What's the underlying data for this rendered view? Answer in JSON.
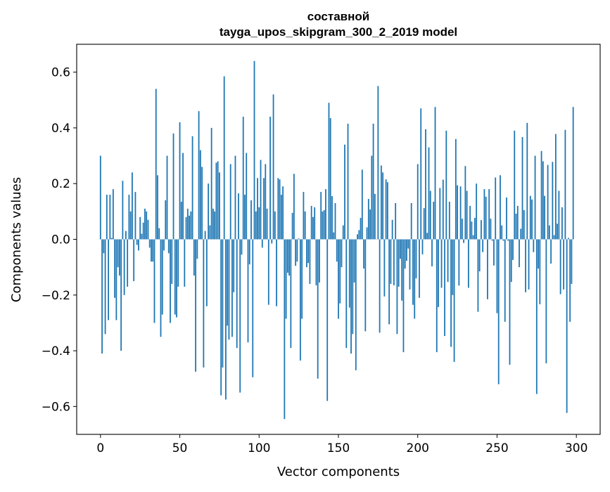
{
  "chart_data": {
    "type": "bar",
    "title": [
      "составной",
      "tayga_upos_skipgram_300_2_2019 model"
    ],
    "xlabel": "Vector components",
    "ylabel": "Components values",
    "xlim": [
      -15,
      315
    ],
    "ylim": [
      -0.7,
      0.7
    ],
    "xticks": [
      0,
      50,
      100,
      150,
      200,
      250,
      300
    ],
    "xtick_labels": [
      "0",
      "50",
      "100",
      "150",
      "200",
      "250",
      "300"
    ],
    "yticks": [
      -0.6,
      -0.4,
      -0.2,
      0.0,
      0.2,
      0.4,
      0.6
    ],
    "ytick_labels": [
      "−0.6",
      "−0.4",
      "−0.2",
      "0.0",
      "0.2",
      "0.4",
      "0.6"
    ],
    "grid": false,
    "bar_color": "#1f77b4",
    "values": [
      0.3,
      -0.41,
      -0.05,
      -0.34,
      0.16,
      -0.29,
      0.16,
      0.005,
      0.18,
      -0.21,
      -0.29,
      -0.1,
      -0.13,
      -0.4,
      0.21,
      -0.2,
      0.03,
      -0.17,
      0.16,
      0.1,
      0.24,
      -0.15,
      0.17,
      -0.02,
      -0.04,
      0.08,
      0.02,
      0.06,
      0.11,
      0.1,
      0.07,
      -0.03,
      -0.08,
      -0.08,
      -0.3,
      0.54,
      0.23,
      0.04,
      -0.35,
      -0.27,
      -0.04,
      0.14,
      0.3,
      -0.05,
      -0.3,
      -0.16,
      0.38,
      -0.27,
      -0.28,
      -0.17,
      0.42,
      0.135,
      0.31,
      -0.17,
      0.08,
      0.11,
      0.085,
      0.1,
      0.37,
      -0.13,
      -0.475,
      -0.07,
      0.46,
      0.32,
      0.26,
      -0.46,
      0.03,
      -0.24,
      0.2,
      0.05,
      0.4,
      0.11,
      0.1,
      0.275,
      0.28,
      0.24,
      -0.56,
      -0.46,
      0.585,
      -0.575,
      -0.31,
      -0.36,
      0.27,
      -0.35,
      -0.19,
      0.3,
      -0.39,
      0.165,
      -0.55,
      -0.055,
      0.44,
      0.16,
      0.31,
      -0.37,
      -0.09,
      0.14,
      -0.495,
      0.64,
      0.1,
      0.22,
      0.115,
      0.285,
      -0.03,
      0.22,
      0.27,
      0.11,
      -0.235,
      0.44,
      -0.015,
      0.52,
      0.1,
      -0.24,
      0.22,
      0.215,
      0.16,
      0.19,
      -0.645,
      -0.285,
      -0.12,
      -0.13,
      -0.39,
      0.095,
      0.235,
      -0.095,
      -0.08,
      0.003,
      -0.435,
      -0.285,
      0.17,
      0.1,
      -0.1,
      -0.085,
      -0.16,
      0.12,
      0.08,
      0.115,
      -0.165,
      -0.5,
      -0.155,
      0.17,
      0.1,
      0.105,
      0.18,
      -0.58,
      0.49,
      0.435,
      0.155,
      0.025,
      0.13,
      -0.08,
      -0.285,
      -0.23,
      -0.1,
      0.05,
      0.34,
      -0.39,
      0.415,
      -0.245,
      -0.41,
      -0.34,
      -0.155,
      -0.47,
      0.018,
      0.033,
      0.077,
      0.25,
      -0.105,
      -0.33,
      0.043,
      0.145,
      0.107,
      0.3,
      0.415,
      0.163,
      0.0,
      0.55,
      -0.335,
      0.265,
      0.24,
      -0.205,
      0.215,
      0.205,
      -0.305,
      -0.16,
      0.07,
      -0.165,
      0.13,
      -0.34,
      -0.17,
      -0.07,
      -0.22,
      -0.405,
      -0.105,
      -0.077,
      -0.033,
      -0.18,
      0.13,
      -0.235,
      -0.285,
      -0.14,
      0.27,
      -0.21,
      0.47,
      -0.054,
      0.112,
      0.395,
      0.023,
      0.33,
      0.174,
      -0.097,
      0.135,
      0.475,
      -0.405,
      -0.243,
      0.184,
      -0.174,
      0.214,
      -0.347,
      0.39,
      -0.153,
      0.135,
      -0.386,
      -0.2,
      -0.44,
      0.36,
      0.194,
      -0.166,
      0.19,
      0.074,
      -0.013,
      0.263,
      0.174,
      -0.174,
      0.12,
      0.064,
      0.015,
      0.077,
      0.2,
      -0.26,
      -0.115,
      0.069,
      -0.046,
      0.18,
      0.153,
      -0.215,
      0.18,
      0.074,
      -0.005,
      -0.094,
      0.222,
      -0.265,
      -0.52,
      0.23,
      0.05,
      -0.005,
      -0.296,
      0.15,
      -0.005,
      -0.45,
      -0.153,
      -0.074,
      0.39,
      0.092,
      0.12,
      -0.1,
      0.038,
      0.367,
      0.105,
      -0.19,
      0.418,
      -0.18,
      0.156,
      0.143,
      -0.046,
      0.3,
      -0.555,
      -0.105,
      -0.233,
      0.317,
      0.28,
      0.156,
      -0.445,
      0.267,
      0.05,
      -0.087,
      0.278,
      0.015,
      0.378,
      0.056,
      0.174,
      -0.197,
      0.115,
      -0.18,
      0.393,
      -0.623,
      0.005,
      -0.296,
      -0.16,
      0.475
    ]
  }
}
